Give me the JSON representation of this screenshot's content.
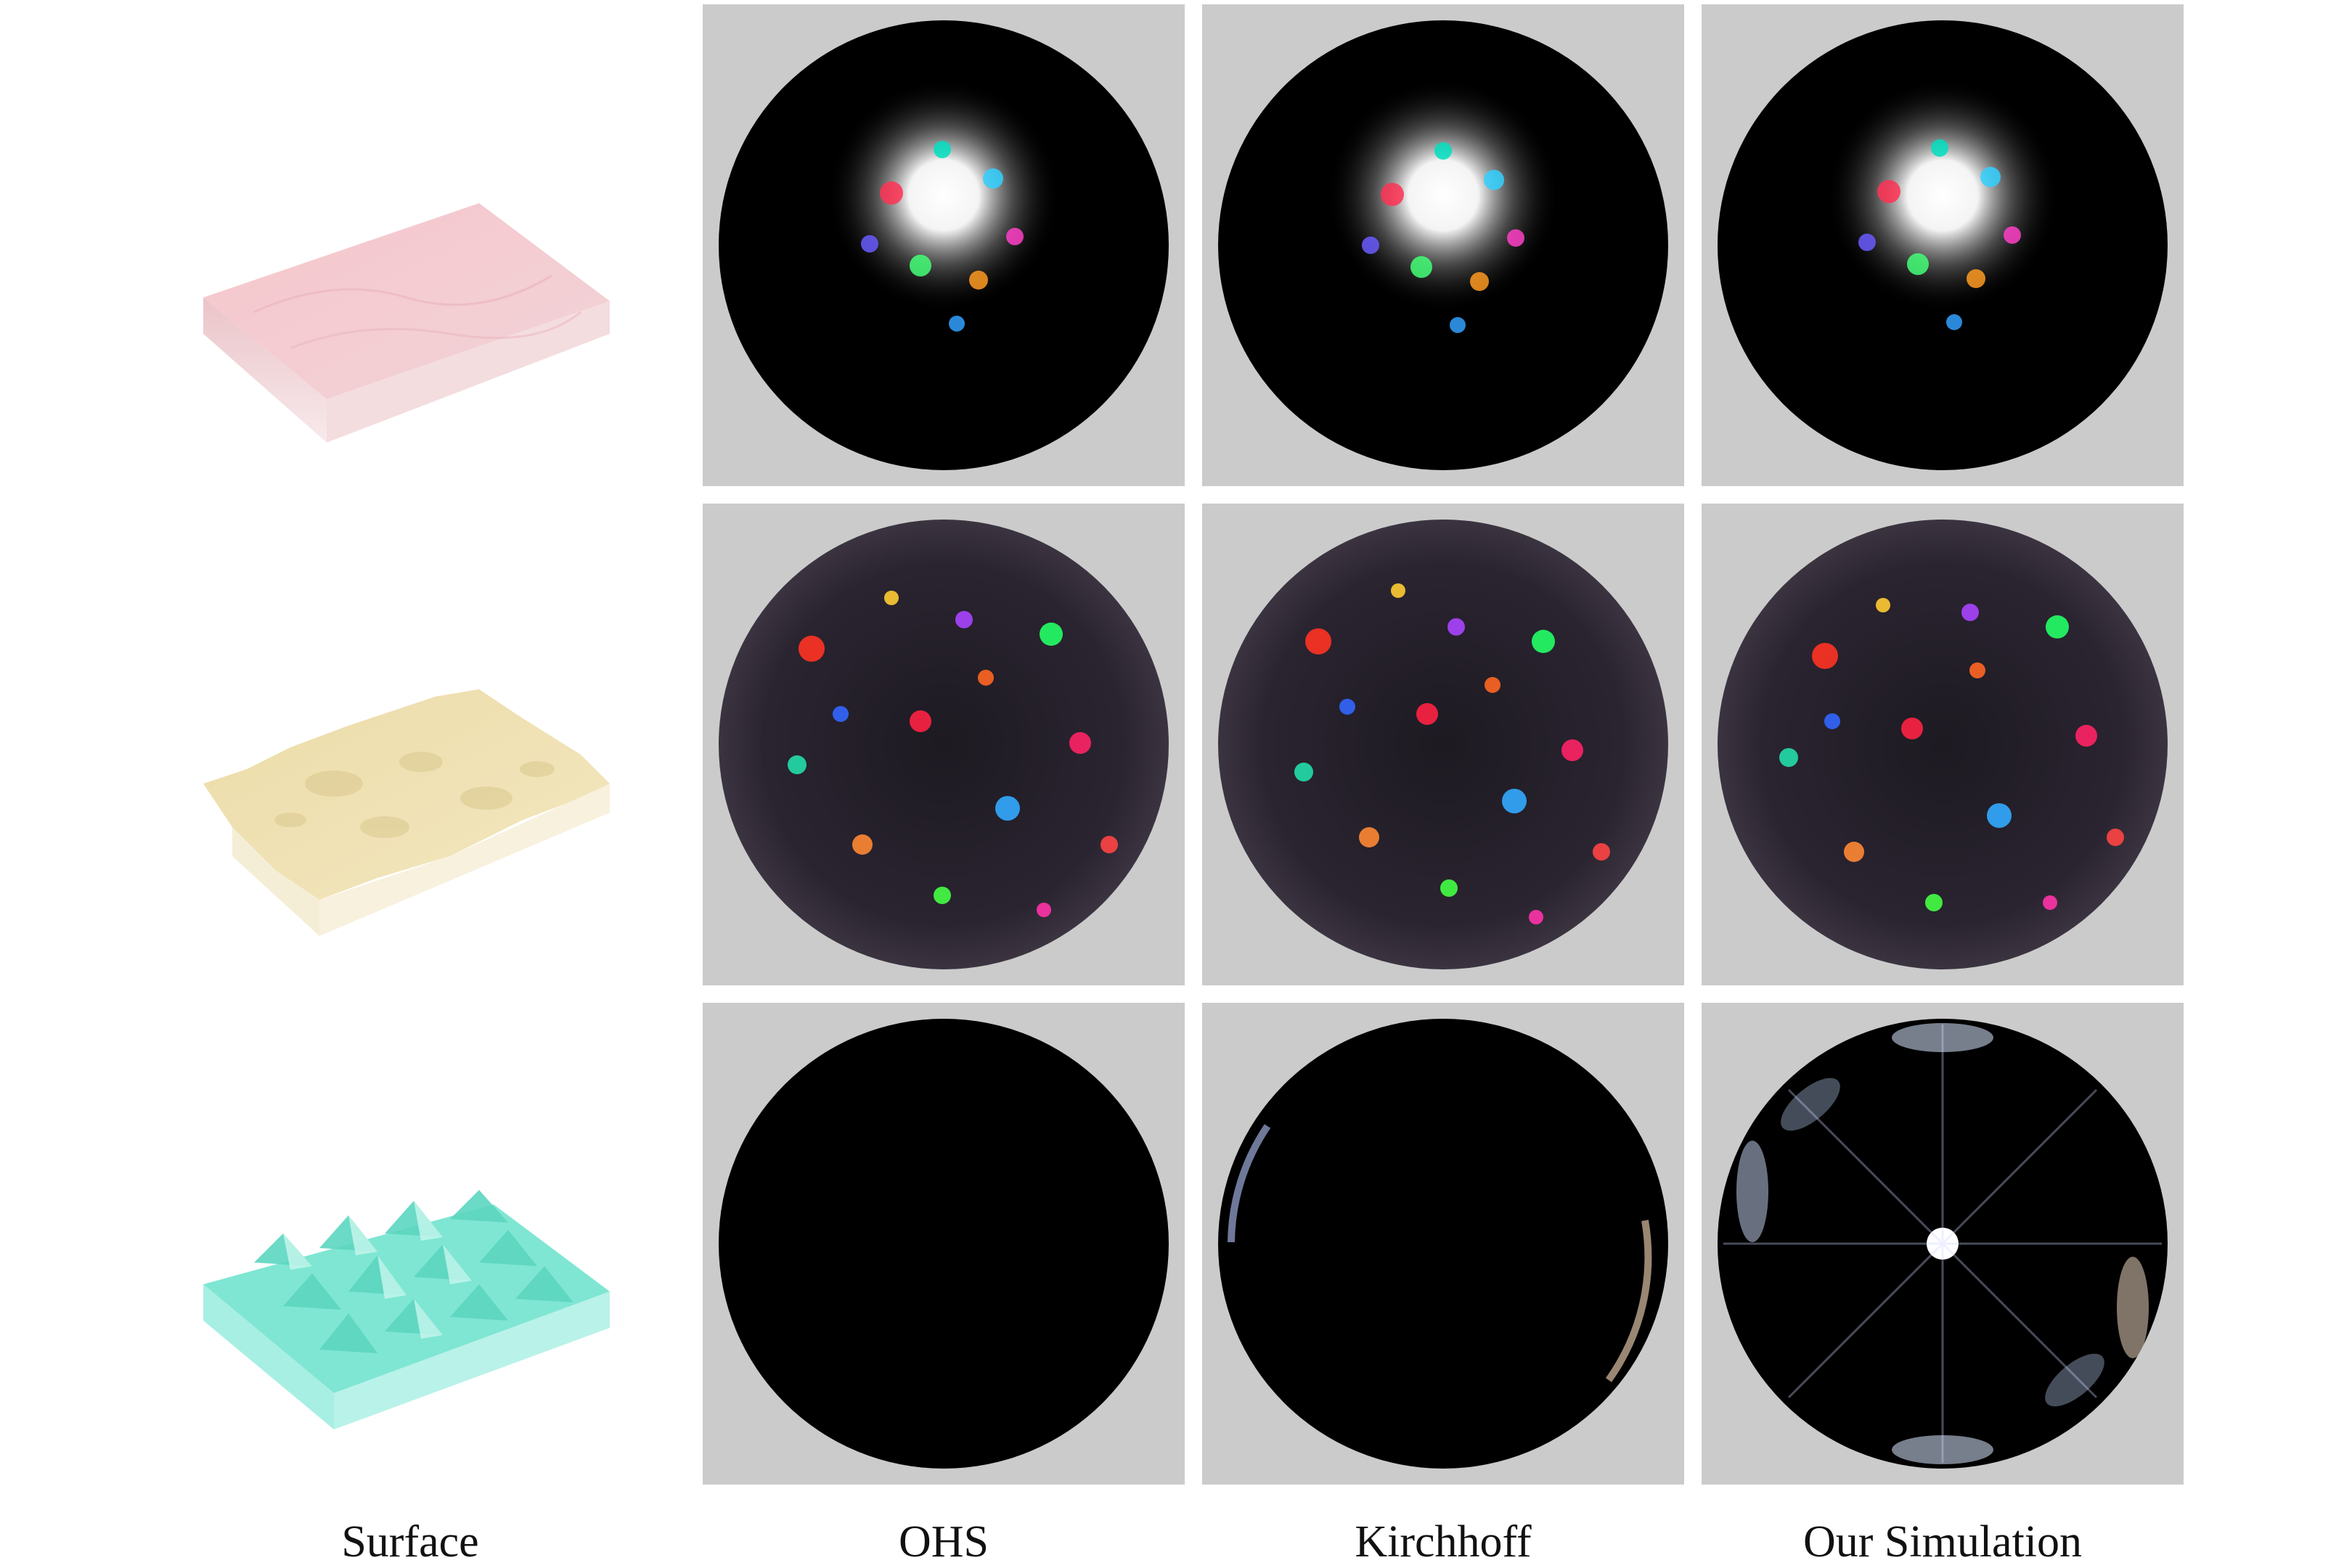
{
  "columns": {
    "surface": "Surface",
    "ohs": "OHS",
    "kirchhoff": "Kirchhoff",
    "ours": "Our Simulation"
  },
  "rows": [
    {
      "surface_color": "#f7c9cf",
      "pattern": [
        "centered-burst",
        "centered-burst",
        "centered-burst"
      ]
    },
    {
      "surface_color": "#efe2b3",
      "pattern": [
        "dense-speckle",
        "dense-speckle",
        "dense-speckle"
      ]
    },
    {
      "surface_color": "#7fe6d3",
      "pattern": [
        "black",
        "rim-glints",
        "central-spot-with-lobes"
      ]
    }
  ]
}
